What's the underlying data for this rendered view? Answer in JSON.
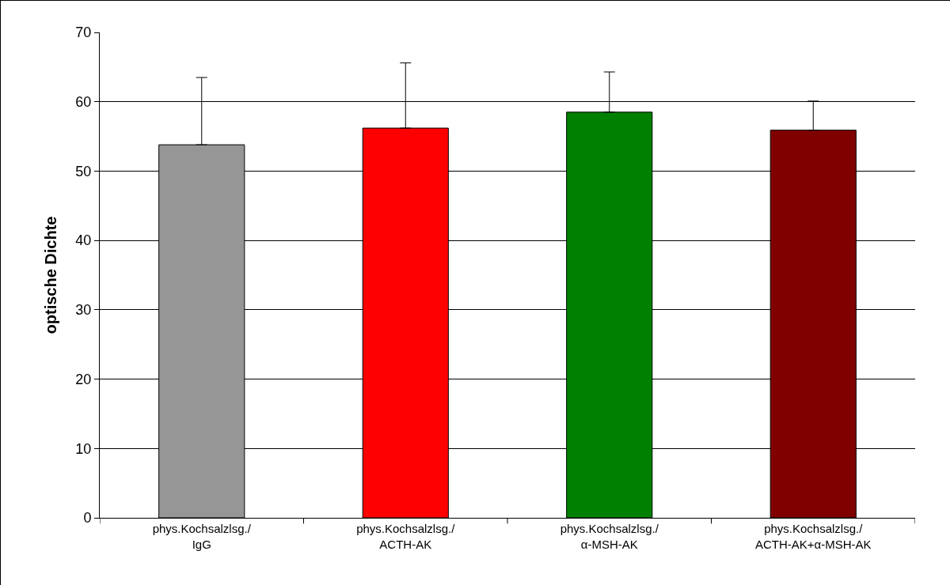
{
  "chart_data": {
    "type": "bar",
    "ylabel": "optische Dichte",
    "categories": [
      "phys.Kochsalzlsg./\nIgG",
      "phys.Kochsalzlsg./\nACTH-AK",
      "phys.Kochsalzlsg./\nα-MSH-AK",
      "phys.Kochsalzlsg./\nACTH-AK+α-MSH-AK"
    ],
    "values": [
      53.8,
      56.2,
      58.5,
      55.9
    ],
    "colors": [
      "#969696",
      "#ff0000",
      "#008000",
      "#800000"
    ],
    "errors": [
      [
        53.8,
        63.5
      ],
      [
        56.2,
        65.6
      ],
      [
        58.5,
        64.3
      ],
      [
        55.9,
        60.1
      ]
    ],
    "ylim": [
      0,
      70
    ],
    "yticks": [
      0,
      10,
      20,
      30,
      40,
      50,
      60,
      70
    ],
    "grid": "y"
  }
}
